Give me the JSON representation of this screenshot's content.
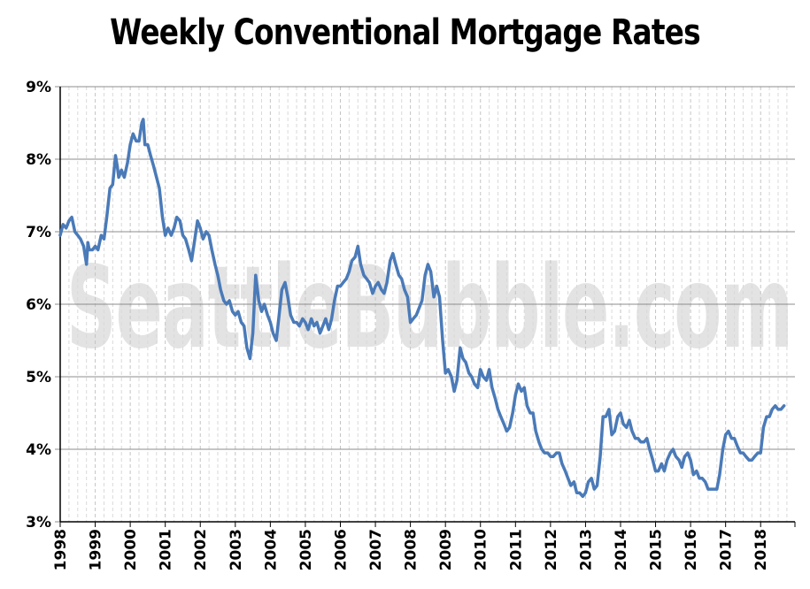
{
  "colors": {
    "line": "#4a7ab8",
    "gridMajor": "#8c8c8c",
    "gridMinor": "#d9d9d9",
    "watermark": "#e3e3e3",
    "axis": "#000000"
  },
  "watermark_text": "SeattleBubble.com",
  "chart_data": {
    "type": "line",
    "title": "Weekly Conventional Mortgage Rates",
    "xlabel": "",
    "ylabel": "",
    "xlim": [
      1998,
      2018.98
    ],
    "ylim": [
      3,
      9
    ],
    "y_ticks": [
      3,
      4,
      5,
      6,
      7,
      8,
      9
    ],
    "y_tick_labels": [
      "3%",
      "4%",
      "5%",
      "6%",
      "7%",
      "8%",
      "9%"
    ],
    "x_ticks": [
      1998,
      1999,
      2000,
      2001,
      2002,
      2003,
      2004,
      2005,
      2006,
      2007,
      2008,
      2009,
      2010,
      2011,
      2012,
      2013,
      2014,
      2015,
      2016,
      2017,
      2018
    ],
    "x_tick_labels": [
      "1998",
      "1999",
      "2000",
      "2001",
      "2002",
      "2003",
      "2004",
      "2005",
      "2006",
      "2007",
      "2008",
      "2009",
      "2010",
      "2011",
      "2012",
      "2013",
      "2014",
      "2015",
      "2016",
      "2017",
      "2018"
    ],
    "grid": "horizontal major lines at each percent; dashed vertical lines at each quarter",
    "legend": "none",
    "series": [
      {
        "x": [
          1998.0,
          1998.08,
          1998.17,
          1998.25,
          1998.33,
          1998.42,
          1998.5,
          1998.58,
          1998.67,
          1998.75,
          1998.79,
          1998.83,
          1998.92,
          1999.0,
          1999.08,
          1999.17,
          1999.25,
          1999.33,
          1999.42,
          1999.5,
          1999.58,
          1999.63,
          1999.67,
          1999.75,
          1999.83,
          1999.92,
          2000.0,
          2000.08,
          2000.17,
          2000.25,
          2000.33,
          2000.37,
          2000.42,
          2000.5,
          2000.58,
          2000.67,
          2000.75,
          2000.83,
          2000.92,
          2001.0,
          2001.08,
          2001.17,
          2001.25,
          2001.33,
          2001.42,
          2001.5,
          2001.58,
          2001.67,
          2001.75,
          2001.83,
          2001.92,
          2002.0,
          2002.08,
          2002.17,
          2002.25,
          2002.33,
          2002.42,
          2002.5,
          2002.58,
          2002.67,
          2002.75,
          2002.83,
          2002.92,
          2003.0,
          2003.08,
          2003.17,
          2003.25,
          2003.33,
          2003.42,
          2003.5,
          2003.58,
          2003.67,
          2003.75,
          2003.83,
          2003.92,
          2004.0,
          2004.08,
          2004.17,
          2004.25,
          2004.33,
          2004.42,
          2004.5,
          2004.58,
          2004.67,
          2004.75,
          2004.83,
          2004.92,
          2005.0,
          2005.08,
          2005.17,
          2005.25,
          2005.33,
          2005.42,
          2005.5,
          2005.58,
          2005.67,
          2005.75,
          2005.83,
          2005.92,
          2006.0,
          2006.08,
          2006.17,
          2006.25,
          2006.33,
          2006.42,
          2006.5,
          2006.58,
          2006.67,
          2006.75,
          2006.83,
          2006.92,
          2007.0,
          2007.08,
          2007.17,
          2007.25,
          2007.33,
          2007.42,
          2007.5,
          2007.58,
          2007.67,
          2007.75,
          2007.83,
          2007.92,
          2008.0,
          2008.08,
          2008.17,
          2008.25,
          2008.33,
          2008.42,
          2008.5,
          2008.58,
          2008.67,
          2008.75,
          2008.83,
          2008.92,
          2009.0,
          2009.08,
          2009.17,
          2009.25,
          2009.33,
          2009.42,
          2009.5,
          2009.58,
          2009.67,
          2009.75,
          2009.83,
          2009.92,
          2010.0,
          2010.08,
          2010.17,
          2010.25,
          2010.33,
          2010.42,
          2010.5,
          2010.58,
          2010.67,
          2010.75,
          2010.83,
          2010.92,
          2011.0,
          2011.08,
          2011.17,
          2011.25,
          2011.33,
          2011.42,
          2011.5,
          2011.58,
          2011.67,
          2011.75,
          2011.83,
          2011.92,
          2012.0,
          2012.08,
          2012.17,
          2012.25,
          2012.33,
          2012.42,
          2012.5,
          2012.58,
          2012.67,
          2012.75,
          2012.83,
          2012.92,
          2013.0,
          2013.08,
          2013.17,
          2013.25,
          2013.33,
          2013.42,
          2013.5,
          2013.58,
          2013.67,
          2013.75,
          2013.83,
          2013.92,
          2014.0,
          2014.08,
          2014.17,
          2014.25,
          2014.33,
          2014.42,
          2014.5,
          2014.58,
          2014.67,
          2014.75,
          2014.83,
          2014.92,
          2015.0,
          2015.08,
          2015.17,
          2015.25,
          2015.33,
          2015.42,
          2015.5,
          2015.58,
          2015.67,
          2015.75,
          2015.83,
          2015.92,
          2016.0,
          2016.08,
          2016.17,
          2016.25,
          2016.33,
          2016.42,
          2016.5,
          2016.58,
          2016.67,
          2016.75,
          2016.83,
          2016.92,
          2017.0,
          2017.08,
          2017.17,
          2017.25,
          2017.33,
          2017.42,
          2017.5,
          2017.58,
          2017.67,
          2017.75,
          2017.83,
          2017.92,
          2018.0,
          2018.08,
          2018.17,
          2018.25,
          2018.33,
          2018.42,
          2018.5,
          2018.58,
          2018.67
        ],
        "y": [
          6.95,
          7.1,
          7.05,
          7.15,
          7.2,
          7.0,
          6.95,
          6.9,
          6.8,
          6.55,
          6.85,
          6.75,
          6.75,
          6.8,
          6.75,
          6.95,
          6.9,
          7.2,
          7.6,
          7.65,
          8.05,
          7.9,
          7.75,
          7.85,
          7.75,
          7.95,
          8.2,
          8.35,
          8.25,
          8.25,
          8.5,
          8.55,
          8.2,
          8.2,
          8.05,
          7.9,
          7.75,
          7.6,
          7.2,
          6.95,
          7.05,
          6.95,
          7.05,
          7.2,
          7.15,
          6.95,
          6.9,
          6.75,
          6.6,
          6.85,
          7.15,
          7.05,
          6.9,
          7.0,
          6.95,
          6.75,
          6.55,
          6.4,
          6.2,
          6.05,
          6.0,
          6.05,
          5.9,
          5.85,
          5.9,
          5.75,
          5.7,
          5.4,
          5.25,
          5.6,
          6.4,
          6.05,
          5.9,
          6.0,
          5.85,
          5.75,
          5.6,
          5.5,
          5.85,
          6.2,
          6.3,
          6.1,
          5.85,
          5.75,
          5.75,
          5.7,
          5.8,
          5.75,
          5.65,
          5.8,
          5.7,
          5.75,
          5.6,
          5.7,
          5.8,
          5.65,
          5.8,
          6.05,
          6.25,
          6.25,
          6.3,
          6.35,
          6.45,
          6.6,
          6.65,
          6.8,
          6.55,
          6.4,
          6.35,
          6.3,
          6.15,
          6.25,
          6.3,
          6.2,
          6.15,
          6.3,
          6.6,
          6.7,
          6.55,
          6.4,
          6.35,
          6.2,
          6.1,
          5.75,
          5.8,
          5.85,
          5.95,
          6.05,
          6.4,
          6.55,
          6.45,
          6.1,
          6.25,
          6.1,
          5.5,
          5.05,
          5.1,
          5.0,
          4.8,
          4.95,
          5.4,
          5.25,
          5.2,
          5.05,
          5.0,
          4.9,
          4.85,
          5.1,
          5.0,
          4.95,
          5.1,
          4.85,
          4.7,
          4.55,
          4.45,
          4.35,
          4.25,
          4.3,
          4.5,
          4.75,
          4.9,
          4.8,
          4.85,
          4.6,
          4.5,
          4.5,
          4.25,
          4.1,
          4.0,
          3.95,
          3.95,
          3.9,
          3.9,
          3.95,
          3.95,
          3.8,
          3.7,
          3.6,
          3.5,
          3.55,
          3.4,
          3.4,
          3.35,
          3.4,
          3.55,
          3.6,
          3.45,
          3.5,
          3.9,
          4.45,
          4.45,
          4.55,
          4.2,
          4.25,
          4.45,
          4.5,
          4.35,
          4.3,
          4.4,
          4.25,
          4.15,
          4.15,
          4.1,
          4.1,
          4.15,
          4.0,
          3.85,
          3.7,
          3.7,
          3.8,
          3.7,
          3.85,
          3.95,
          4.0,
          3.9,
          3.85,
          3.75,
          3.9,
          3.95,
          3.85,
          3.65,
          3.7,
          3.6,
          3.6,
          3.55,
          3.45,
          3.45,
          3.45,
          3.45,
          3.65,
          4.0,
          4.2,
          4.25,
          4.15,
          4.15,
          4.05,
          3.95,
          3.95,
          3.9,
          3.85,
          3.85,
          3.9,
          3.95,
          3.95,
          4.3,
          4.45,
          4.45,
          4.55,
          4.6,
          4.55,
          4.55,
          4.6
        ]
      }
    ]
  }
}
